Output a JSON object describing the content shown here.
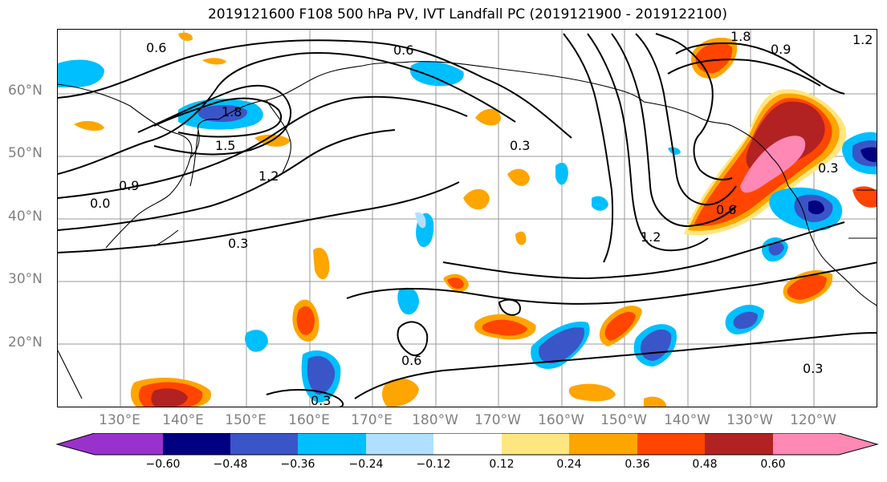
{
  "title": "2019121600 F108 500 hPa PV, IVT Landfall PC (2019121900 - 2019122100)",
  "lat_labels": [
    "60°N",
    "50°N",
    "40°N",
    "30°N",
    "20°N"
  ],
  "lon_labels": [
    "130°E",
    "140°E",
    "150°E",
    "160°E",
    "170°E",
    "180°W",
    "170°W",
    "160°W",
    "150°W",
    "140°W",
    "130°W",
    "120°W"
  ],
  "colorbar": {
    "ticks": [
      "−0.60",
      "−0.48",
      "−0.36",
      "−0.24",
      "−0.12",
      "0.12",
      "0.24",
      "0.36",
      "0.48",
      "0.60"
    ],
    "colors": [
      "#9932cc",
      "#000080",
      "#3a55c8",
      "#00bfff",
      "#b0e0ff",
      "#ffffff",
      "#ffe680",
      "#ffa500",
      "#ff4500",
      "#b22222",
      "#ff88b4"
    ]
  },
  "contour_labels": [
    {
      "text": "0.6"
    },
    {
      "text": "0.6"
    },
    {
      "text": "1.8"
    },
    {
      "text": "1.5"
    },
    {
      "text": "1.2"
    },
    {
      "text": "0.9"
    },
    {
      "text": "0.0"
    },
    {
      "text": "0.3"
    },
    {
      "text": "0.3"
    },
    {
      "text": "1.2"
    },
    {
      "text": "0.6"
    },
    {
      "text": "0.3"
    },
    {
      "text": "0.6"
    },
    {
      "text": "0.3"
    },
    {
      "text": "1.8"
    },
    {
      "text": "1.2"
    },
    {
      "text": "0.9"
    },
    {
      "text": "0.3"
    }
  ],
  "colors": {
    "grid": "#9a9a9a",
    "coast": "#000000",
    "contour": "#000000",
    "axis_label": "#808080"
  }
}
